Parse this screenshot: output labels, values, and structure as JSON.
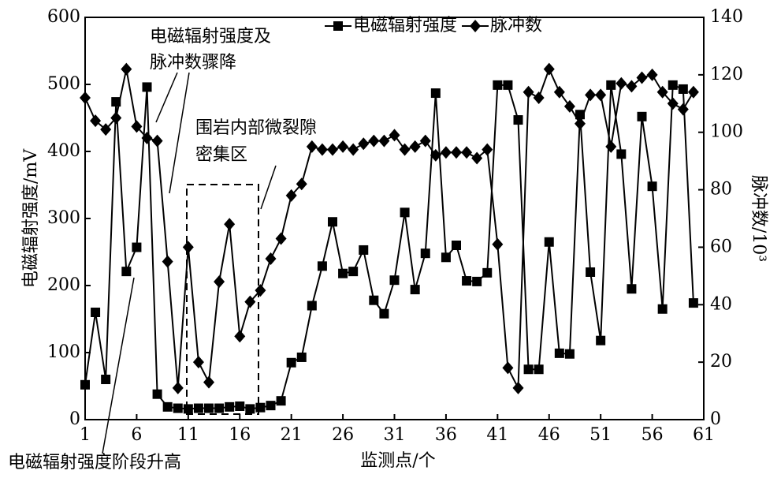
{
  "chart_data": {
    "type": "line",
    "x": [
      1,
      2,
      3,
      4,
      5,
      6,
      7,
      8,
      9,
      10,
      11,
      12,
      13,
      14,
      15,
      16,
      17,
      18,
      19,
      20,
      21,
      22,
      23,
      24,
      25,
      26,
      27,
      28,
      29,
      30,
      31,
      32,
      33,
      34,
      35,
      36,
      37,
      38,
      39,
      40,
      41,
      42,
      43,
      44,
      45,
      46,
      47,
      48,
      49,
      50,
      51,
      52,
      53,
      54,
      55,
      56,
      57,
      58,
      59,
      60
    ],
    "series": [
      {
        "name": "电磁辐射强度",
        "color": "#000000",
        "marker": "square",
        "values": [
          52,
          160,
          60,
          474,
          221,
          257,
          496,
          38,
          19,
          17,
          16,
          17,
          17,
          17,
          19,
          20,
          16,
          18,
          21,
          28,
          85,
          93,
          170,
          229,
          295,
          218,
          221,
          253,
          178,
          158,
          208,
          309,
          194,
          248,
          487,
          242,
          260,
          207,
          206,
          219,
          499,
          499,
          447,
          75,
          75,
          265,
          99,
          98,
          455,
          220,
          118,
          499,
          396,
          195,
          452,
          348,
          165,
          499,
          493,
          174
        ]
      },
      {
        "name": "脉冲数",
        "color": "#000000",
        "marker": "diamond",
        "axis": "y2",
        "values": [
          112,
          104,
          101,
          105,
          122,
          102,
          98,
          97,
          55,
          11,
          60,
          20,
          13,
          48,
          68,
          29,
          41,
          45,
          56,
          63,
          78,
          82,
          95,
          94,
          94,
          95,
          94,
          96,
          97,
          97,
          99,
          94,
          95,
          97,
          92,
          93,
          93,
          93,
          91,
          94,
          61,
          18,
          11,
          114,
          112,
          122,
          114,
          109,
          103,
          113,
          113,
          95,
          117,
          116,
          119,
          120,
          114,
          110,
          108,
          114
        ]
      }
    ],
    "xlim": [
      1,
      61
    ],
    "xticks": [
      1,
      6,
      11,
      16,
      21,
      26,
      31,
      36,
      41,
      46,
      51,
      56,
      61
    ],
    "ylim": [
      0,
      600
    ],
    "yticks": [
      0,
      100,
      200,
      300,
      400,
      500,
      600
    ],
    "y2lim": [
      0,
      140
    ],
    "y2ticks": [
      0,
      20,
      40,
      60,
      80,
      100,
      120,
      140
    ],
    "xlabel": "监测点/个",
    "ylabel": "电磁辐射强度/mV",
    "y2label": "脉冲数/10³",
    "legend": "top",
    "annotations": [
      {
        "lines": [
          "电磁辐射强度及",
          "脉冲数骤降"
        ]
      },
      {
        "lines": [
          "围岩内部微裂隙",
          "密集区"
        ]
      },
      {
        "lines": [
          "电磁辐射强度阶段升高"
        ]
      }
    ]
  }
}
